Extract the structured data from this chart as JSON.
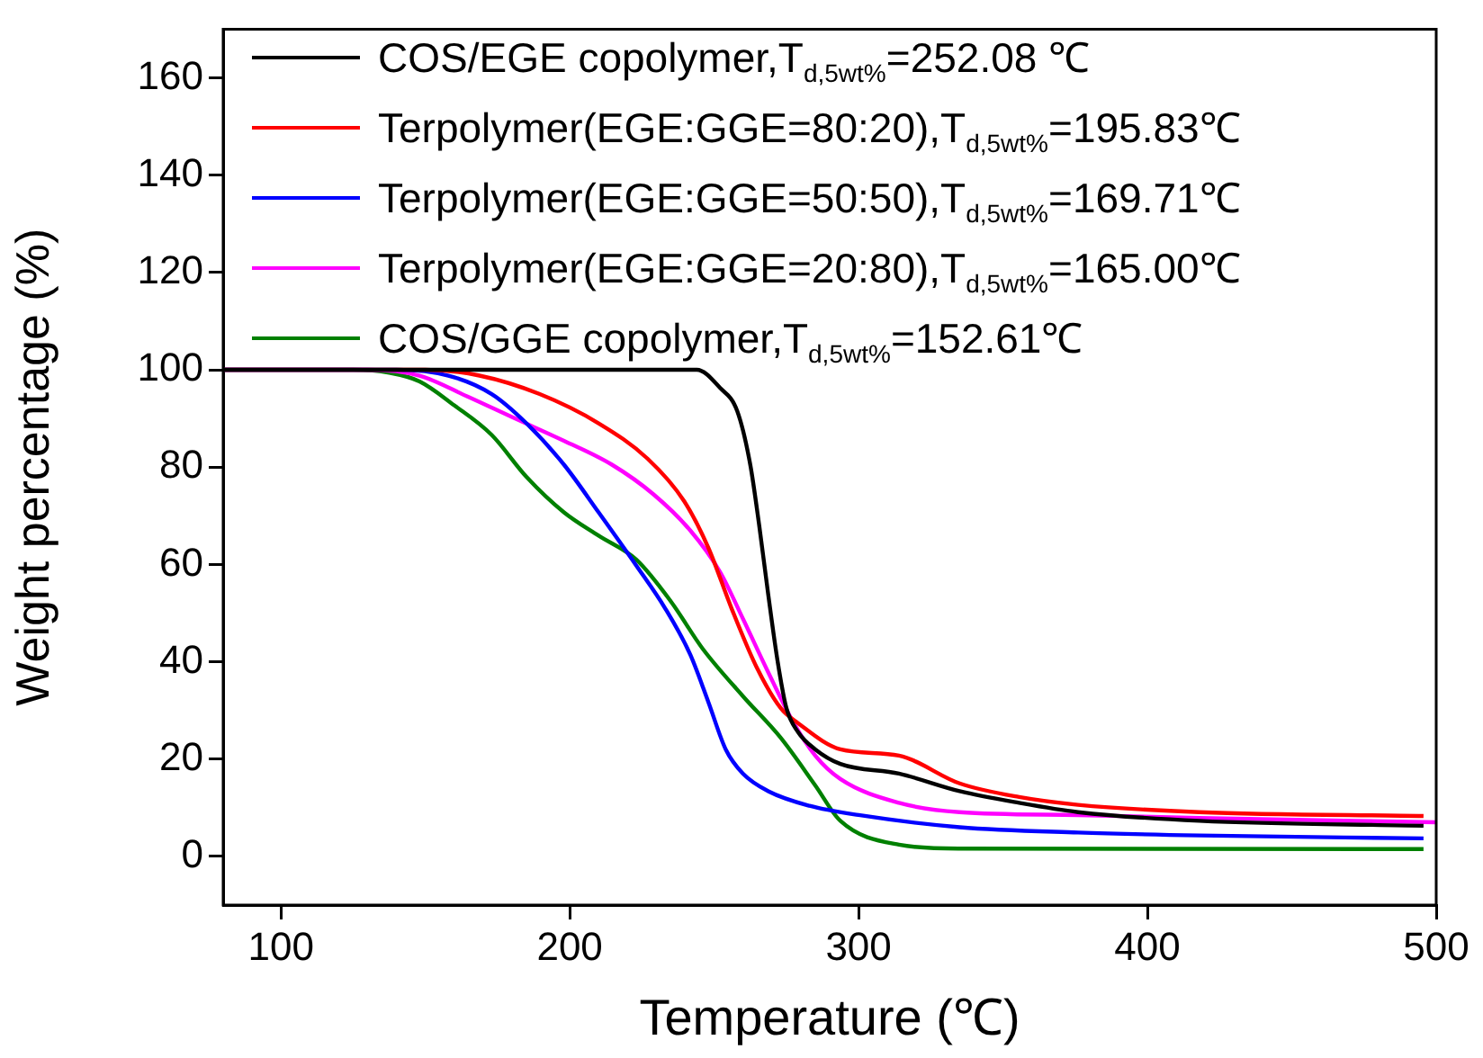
{
  "chart_data": {
    "type": "line",
    "xlabel": "Temperature (℃)",
    "ylabel": "Weight percentage (%)",
    "xlim": [
      80,
      500
    ],
    "xticks": [
      100,
      200,
      300,
      400,
      500
    ],
    "ylim": [
      -10,
      170
    ],
    "yticks": [
      0,
      20,
      40,
      60,
      80,
      100,
      120,
      140,
      160
    ],
    "grid": false,
    "legend": "top",
    "marker": "none",
    "line_style": "solid",
    "series": [
      {
        "name": "COS/EGE copolymer,T$_{d,5wt%}$=252.08 ℃",
        "color": "#000000",
        "x": [
          80,
          200,
          244,
          252,
          258,
          262.5,
          265.6,
          268.75,
          272,
          275,
          279,
          285,
          293.7,
          314,
          335,
          355.6,
          376,
          418,
          495.6
        ],
        "values": [
          100,
          100,
          100,
          96.3,
          91.5,
          80.5,
          68,
          53.7,
          40,
          30.5,
          25.6,
          22,
          19,
          17,
          13.4,
          11,
          9.1,
          7.3,
          6.3
        ]
      },
      {
        "name": "Terpolymer(EGE:GGE=80:20),T$_{d,5wt%}$=195.83℃",
        "color": "#ff0000",
        "x": [
          80,
          150,
          168.75,
          189.6,
          210,
          227,
          239.6,
          248,
          256,
          264.6,
          273,
          279,
          293.7,
          314,
          335,
          355.6,
          376,
          418,
          495.6
        ],
        "values": [
          100,
          100,
          98.8,
          95,
          89,
          81.7,
          73,
          63.4,
          51,
          39,
          30.5,
          27.4,
          22,
          20.7,
          15,
          12.2,
          10.6,
          9.1,
          8.3
        ]
      },
      {
        "name": "Terpolymer(EGE:GGE=50:50),T$_{d,5wt%}$=169.71℃",
        "color": "#0000ff",
        "x": [
          80,
          140,
          158,
          173,
          185,
          198,
          210,
          223,
          233,
          241.7,
          248,
          254,
          260,
          268.75,
          283,
          300,
          335,
          376,
          418,
          495.6
        ],
        "values": [
          100,
          100,
          98.8,
          95,
          89,
          80.5,
          70.7,
          59.8,
          51,
          41.5,
          31.7,
          22,
          17,
          13.4,
          10.4,
          8.5,
          6,
          4.9,
          4.3,
          3.7
        ]
      },
      {
        "name": "Terpolymer(EGE:GGE=20:80),T$_{d,5wt%}$=165.00℃",
        "color": "#ff00ff",
        "x": [
          80,
          130,
          148,
          164.6,
          181,
          198,
          214.6,
          229,
          241.7,
          252,
          260,
          268.75,
          277,
          285,
          293.7,
          314,
          335,
          376,
          418,
          500
        ],
        "values": [
          100,
          100,
          98.8,
          94.5,
          90,
          85.4,
          80.5,
          74.4,
          67,
          58.5,
          48.8,
          37.8,
          28,
          20.7,
          15.9,
          11,
          9.1,
          8.5,
          7.9,
          7
        ]
      },
      {
        "name": "COS/GGE copolymer,T$_{d,5wt%}$=152.61℃",
        "color": "#008000",
        "x": [
          80,
          125,
          137.5,
          148,
          160,
          173,
          185,
          198,
          210,
          223,
          235,
          246,
          260,
          273,
          285,
          293.7,
          314,
          335,
          495.6
        ],
        "values": [
          100,
          100,
          99.4,
          97.6,
          92.7,
          86.6,
          78,
          70.7,
          65.9,
          61,
          52.4,
          42.7,
          32.9,
          24.4,
          14.6,
          7.3,
          2.4,
          1.6,
          1.5
        ]
      }
    ]
  }
}
